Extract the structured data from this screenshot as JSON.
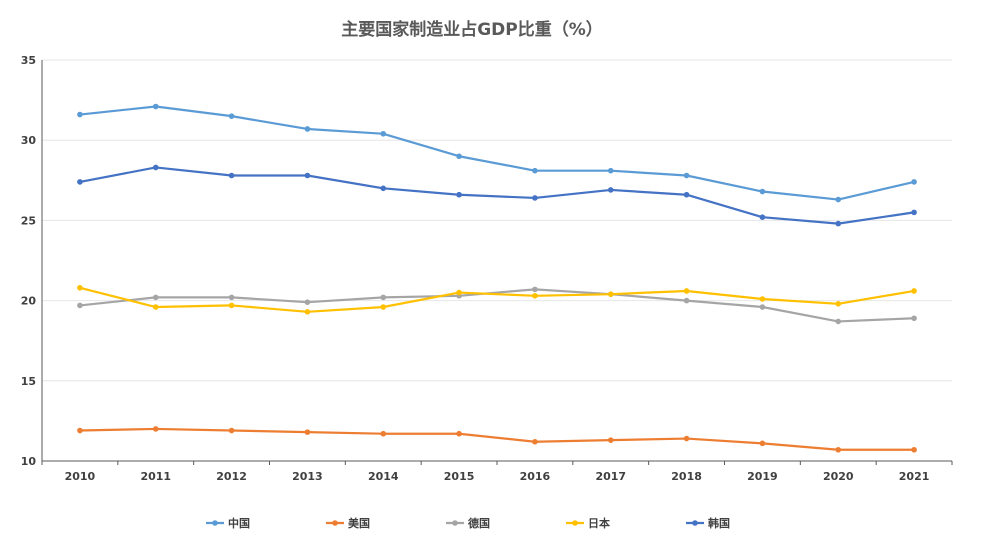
{
  "chart_data": {
    "type": "line",
    "title": "主要国家制造业占GDP比重（%）",
    "xlabel": "",
    "ylabel": "",
    "categories": [
      "2010",
      "2011",
      "2012",
      "2013",
      "2014",
      "2015",
      "2016",
      "2017",
      "2018",
      "2019",
      "2020",
      "2021"
    ],
    "ylim": [
      10,
      35
    ],
    "yticks": [
      10,
      15,
      20,
      25,
      30,
      35
    ],
    "grid": true,
    "legend_position": "bottom",
    "series": [
      {
        "name": "中国",
        "color": "#5B9BD5",
        "values": [
          31.6,
          32.1,
          31.5,
          30.7,
          30.4,
          29.0,
          28.1,
          28.1,
          27.8,
          26.8,
          26.3,
          27.4
        ]
      },
      {
        "name": "美国",
        "color": "#ED7D31",
        "values": [
          11.9,
          12.0,
          11.9,
          11.8,
          11.7,
          11.7,
          11.2,
          11.3,
          11.4,
          11.1,
          10.7,
          10.7
        ]
      },
      {
        "name": "德国",
        "color": "#A5A5A5",
        "values": [
          19.7,
          20.2,
          20.2,
          19.9,
          20.2,
          20.3,
          20.7,
          20.4,
          20.0,
          19.6,
          18.7,
          18.9
        ]
      },
      {
        "name": "日本",
        "color": "#FFC000",
        "values": [
          20.8,
          19.6,
          19.7,
          19.3,
          19.6,
          20.5,
          20.3,
          20.4,
          20.6,
          20.1,
          19.8,
          20.6
        ]
      },
      {
        "name": "韩国",
        "color": "#4472C4",
        "values": [
          27.4,
          28.3,
          27.8,
          27.8,
          27.0,
          26.6,
          26.4,
          26.9,
          26.6,
          25.2,
          24.8,
          25.5
        ]
      }
    ]
  }
}
